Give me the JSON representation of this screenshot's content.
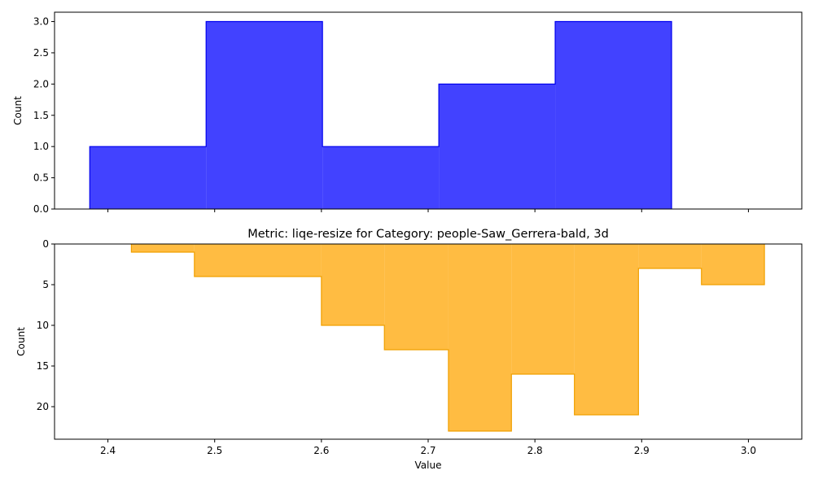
{
  "chart_data": [
    {
      "type": "histogram",
      "title": "",
      "xlabel": "",
      "ylabel": "Count",
      "color": "#0000ff",
      "edge_color": "#0000ee",
      "orientation": "up",
      "bin_edges": [
        2.383,
        2.492,
        2.601,
        2.71,
        2.819,
        2.928
      ],
      "counts": [
        1,
        3,
        1,
        2,
        3
      ],
      "xlim": [
        2.35,
        3.05
      ],
      "ylim": [
        0,
        3.15
      ],
      "xticks": [
        2.4,
        2.5,
        2.6,
        2.7,
        2.8,
        2.9,
        3.0
      ],
      "show_xtick_labels": false,
      "yticks": [
        0.0,
        0.5,
        1.0,
        1.5,
        2.0,
        2.5,
        3.0
      ],
      "ytick_labels": [
        "0.0",
        "0.5",
        "1.0",
        "1.5",
        "2.0",
        "2.5",
        "3.0"
      ]
    },
    {
      "type": "histogram",
      "title": "Metric: liqe-resize for Category: people-Saw_Gerrera-bald, 3d",
      "xlabel": "Value",
      "ylabel": "Count",
      "color": "#ffa500",
      "edge_color": "#f0a000",
      "orientation": "down",
      "bin_edges": [
        2.422,
        2.481,
        2.6,
        2.659,
        2.719,
        2.778,
        2.837,
        2.897,
        2.956,
        3.015
      ],
      "counts": [
        1,
        4,
        10,
        13,
        23,
        16,
        21,
        3,
        5
      ],
      "xlim": [
        2.35,
        3.05
      ],
      "ylim": [
        0,
        24
      ],
      "xticks": [
        2.4,
        2.5,
        2.6,
        2.7,
        2.8,
        2.9,
        3.0
      ],
      "xtick_labels": [
        "2.4",
        "2.5",
        "2.6",
        "2.7",
        "2.8",
        "2.9",
        "3.0"
      ],
      "show_xtick_labels": true,
      "yticks": [
        0,
        5,
        10,
        15,
        20
      ],
      "ytick_labels": [
        "0",
        "5",
        "10",
        "15",
        "20"
      ]
    }
  ]
}
